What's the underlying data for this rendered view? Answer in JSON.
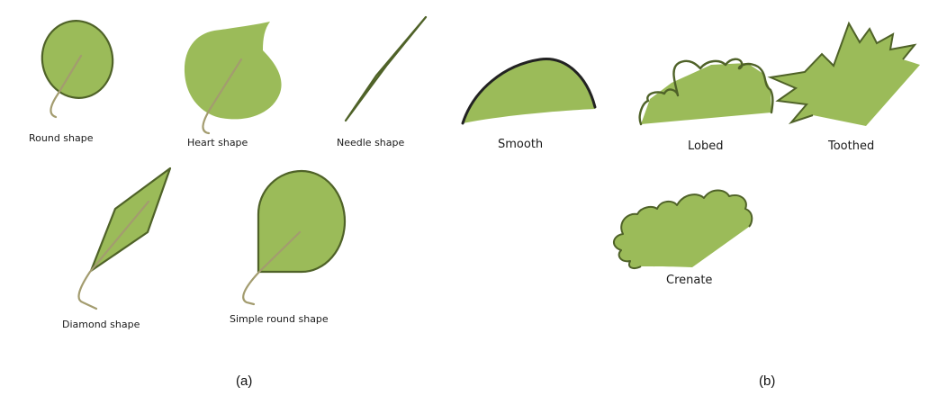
{
  "colors": {
    "leaf": "#9bbb59",
    "outline": "#4f6228",
    "stem": "#a39c6f",
    "edge_line": "#222222",
    "text": "#1a1a1a"
  },
  "panel_a": {
    "caption": "(a)",
    "shapes": {
      "round": "Round shape",
      "heart": "Heart shape",
      "needle": "Needle shape",
      "diamond": "Diamond shape",
      "simple_round": "Simple round shape"
    }
  },
  "panel_b": {
    "caption": "(b)",
    "margins": {
      "smooth": "Smooth",
      "lobed": "Lobed",
      "toothed": "Toothed",
      "crenate": "Crenate"
    }
  }
}
